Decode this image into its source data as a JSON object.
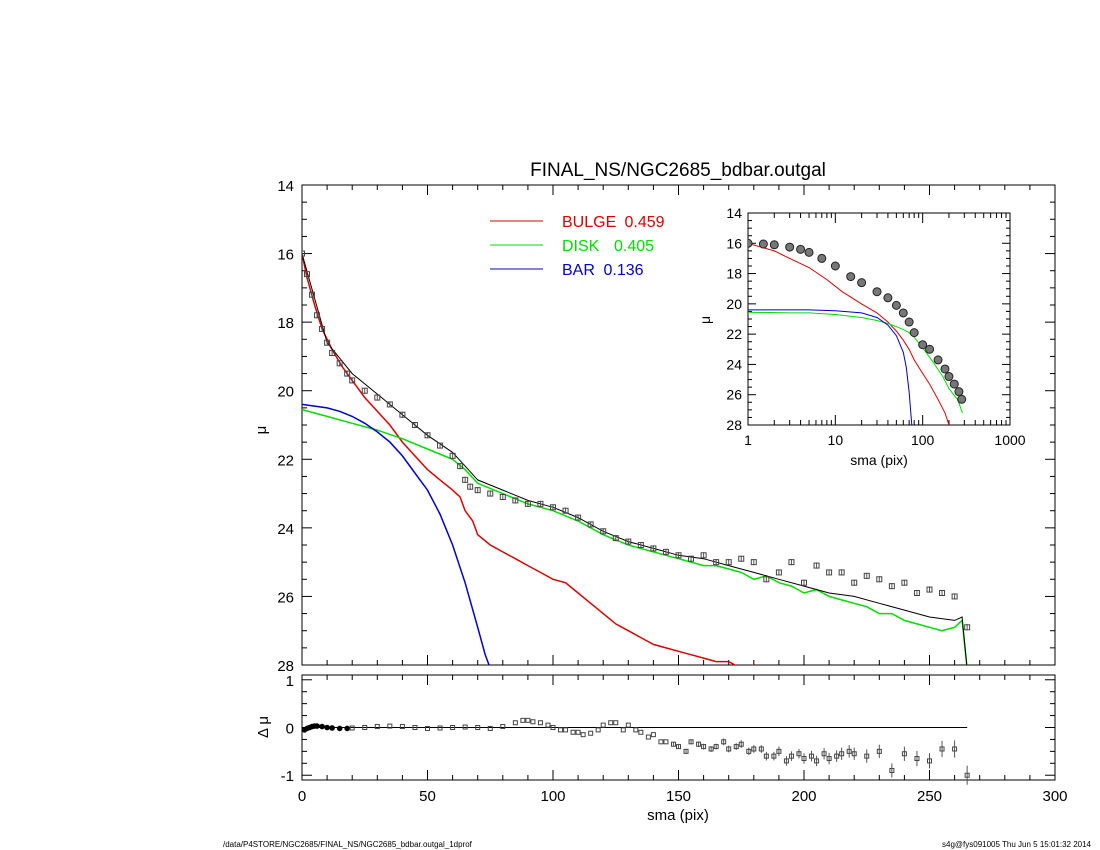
{
  "title": "FINAL_NS/NGC2685_bdbar.outgal",
  "footer": {
    "left": "/data/P4STORE/NGC2685/FINAL_NS/NGC2685_bdbar.outgal_1dprof",
    "right": "s4g@fys091005  Thu Jun  5 15:01:32 2014"
  },
  "colors": {
    "bulge": "#dd0000",
    "disk": "#00dd00",
    "bar": "#0000cc",
    "data": "#000000"
  },
  "chart_data": [
    {
      "id": "main",
      "type": "line",
      "xlabel": "sma (pix)",
      "ylabel": "μ",
      "xlim": [
        0,
        300
      ],
      "ylim": [
        28,
        14
      ],
      "xticks": [
        "0",
        "50",
        "100",
        "150",
        "200",
        "250",
        "300"
      ],
      "yticks": [
        "14",
        "16",
        "18",
        "20",
        "22",
        "24",
        "26",
        "28"
      ],
      "legend_position": "top-center",
      "legend": [
        {
          "label": "BULGE",
          "value": "0.459",
          "color": "#dd0000"
        },
        {
          "label": "DISK",
          "value": "0.405",
          "color": "#00dd00"
        },
        {
          "label": "BAR",
          "value": "0.136",
          "color": "#0000cc"
        }
      ],
      "series": [
        {
          "name": "BULGE",
          "x": [
            0,
            2,
            5,
            8,
            12,
            16,
            20,
            25,
            30,
            35,
            40,
            45,
            50,
            55,
            60,
            63,
            65,
            68,
            70,
            75,
            80,
            85,
            90,
            95,
            100,
            105,
            110,
            115,
            120,
            125,
            130,
            135,
            140,
            145,
            150,
            155,
            160,
            165,
            170,
            175,
            180
          ],
          "y": [
            16.0,
            16.7,
            17.5,
            18.2,
            18.8,
            19.3,
            19.7,
            20.2,
            20.6,
            21.0,
            21.5,
            21.9,
            22.3,
            22.6,
            22.9,
            23.1,
            23.5,
            23.8,
            24.2,
            24.5,
            24.7,
            24.9,
            25.1,
            25.3,
            25.5,
            25.6,
            25.9,
            26.2,
            26.5,
            26.8,
            27.0,
            27.2,
            27.4,
            27.5,
            27.6,
            27.7,
            27.8,
            27.9,
            27.9,
            28.1,
            28.0
          ]
        },
        {
          "name": "DISK",
          "x": [
            0,
            10,
            20,
            30,
            40,
            50,
            60,
            65,
            70,
            80,
            90,
            100,
            110,
            120,
            130,
            140,
            145,
            150,
            155,
            160,
            165,
            170,
            175,
            180,
            185,
            190,
            195,
            200,
            205,
            210,
            215,
            220,
            225,
            230,
            235,
            240,
            245,
            250,
            255,
            260,
            263,
            265
          ],
          "y": [
            20.55,
            20.75,
            20.95,
            21.15,
            21.4,
            21.7,
            22.0,
            22.3,
            22.7,
            23.0,
            23.3,
            23.5,
            23.8,
            24.2,
            24.5,
            24.7,
            24.8,
            24.9,
            25.0,
            25.1,
            25.1,
            25.2,
            25.3,
            25.5,
            25.4,
            25.6,
            25.7,
            25.9,
            25.8,
            26.0,
            26.1,
            26.2,
            26.3,
            26.5,
            26.5,
            26.7,
            26.8,
            26.9,
            27.0,
            26.9,
            26.7,
            28.1
          ]
        },
        {
          "name": "BAR",
          "x": [
            0,
            5,
            10,
            15,
            20,
            25,
            30,
            35,
            40,
            45,
            50,
            55,
            60,
            65,
            70,
            73,
            75
          ],
          "y": [
            20.4,
            20.45,
            20.5,
            20.6,
            20.75,
            20.95,
            21.2,
            21.5,
            21.9,
            22.4,
            22.9,
            23.6,
            24.5,
            25.6,
            26.9,
            27.7,
            28.1
          ]
        },
        {
          "name": "model",
          "x": [
            0,
            10,
            20,
            30,
            40,
            50,
            60,
            65,
            70,
            80,
            90,
            100,
            110,
            120,
            130,
            140,
            150,
            160,
            170,
            180,
            190,
            200,
            210,
            220,
            230,
            240,
            250,
            260,
            263,
            265
          ],
          "y": [
            16.0,
            18.6,
            19.5,
            20.1,
            20.7,
            21.3,
            21.8,
            22.2,
            22.6,
            22.9,
            23.2,
            23.4,
            23.7,
            24.1,
            24.4,
            24.6,
            24.8,
            24.9,
            25.1,
            25.3,
            25.5,
            25.7,
            25.9,
            26.0,
            26.2,
            26.4,
            26.6,
            26.7,
            26.6,
            28.1
          ]
        },
        {
          "name": "data",
          "x": [
            0,
            2,
            4,
            6,
            8,
            10,
            12,
            15,
            18,
            20,
            25,
            30,
            35,
            40,
            45,
            50,
            55,
            60,
            63,
            65,
            67,
            70,
            75,
            80,
            85,
            90,
            95,
            100,
            105,
            110,
            115,
            120,
            125,
            130,
            135,
            140,
            145,
            150,
            155,
            160,
            165,
            170,
            175,
            180,
            185,
            190,
            195,
            200,
            205,
            210,
            215,
            220,
            225,
            230,
            235,
            240,
            245,
            250,
            255,
            260,
            265
          ],
          "y": [
            16.0,
            16.6,
            17.2,
            17.8,
            18.2,
            18.6,
            18.9,
            19.2,
            19.5,
            19.7,
            20.0,
            20.2,
            20.4,
            20.7,
            21.0,
            21.3,
            21.6,
            21.9,
            22.2,
            22.6,
            22.8,
            22.9,
            23.0,
            23.1,
            23.2,
            23.3,
            23.3,
            23.4,
            23.5,
            23.7,
            23.9,
            24.1,
            24.3,
            24.4,
            24.5,
            24.6,
            24.7,
            24.8,
            24.9,
            24.8,
            25.0,
            25.0,
            24.9,
            25.0,
            25.5,
            25.3,
            25.0,
            25.6,
            25.1,
            25.3,
            25.3,
            25.6,
            25.4,
            25.5,
            25.7,
            25.6,
            25.9,
            25.8,
            25.9,
            26.0,
            26.9
          ]
        }
      ]
    },
    {
      "id": "residual",
      "type": "scatter",
      "xlabel": "sma (pix)",
      "ylabel": "Δ μ",
      "xlim": [
        0,
        300
      ],
      "ylim": [
        -1.1,
        1.1
      ],
      "xticks": [
        "0",
        "50",
        "100",
        "150",
        "200",
        "250",
        "300"
      ],
      "yticks": [
        "1",
        "0",
        "-1"
      ],
      "series": [
        {
          "name": "residual",
          "x": [
            1,
            2,
            3,
            4,
            5,
            6,
            8,
            10,
            12,
            15,
            18,
            20,
            25,
            30,
            35,
            40,
            45,
            50,
            55,
            60,
            65,
            70,
            75,
            80,
            85,
            88,
            90,
            92,
            95,
            98,
            100,
            103,
            105,
            108,
            110,
            112,
            115,
            118,
            120,
            123,
            125,
            128,
            130,
            133,
            135,
            138,
            140,
            143,
            145,
            148,
            150,
            153,
            155,
            158,
            160,
            163,
            165,
            168,
            170,
            173,
            175,
            178,
            180,
            183,
            185,
            188,
            190,
            193,
            195,
            198,
            200,
            203,
            205,
            208,
            210,
            213,
            215,
            218,
            220,
            225,
            230,
            235,
            240,
            245,
            250,
            255,
            260,
            265
          ],
          "y": [
            -0.05,
            -0.02,
            0.0,
            0.02,
            0.03,
            0.03,
            0.02,
            0.0,
            -0.01,
            -0.02,
            -0.02,
            -0.01,
            0.0,
            0.02,
            0.03,
            0.02,
            0.0,
            -0.02,
            -0.01,
            0.0,
            0.01,
            0.0,
            -0.02,
            0.02,
            0.1,
            0.15,
            0.15,
            0.12,
            0.1,
            0.05,
            0.0,
            -0.05,
            -0.05,
            -0.1,
            -0.1,
            -0.15,
            -0.12,
            -0.05,
            0.05,
            0.1,
            0.1,
            -0.05,
            0.05,
            -0.05,
            -0.1,
            -0.2,
            -0.15,
            -0.3,
            -0.3,
            -0.35,
            -0.4,
            -0.5,
            -0.3,
            -0.35,
            -0.4,
            -0.45,
            -0.4,
            -0.3,
            -0.45,
            -0.4,
            -0.35,
            -0.5,
            -0.45,
            -0.45,
            -0.6,
            -0.6,
            -0.5,
            -0.7,
            -0.6,
            -0.55,
            -0.65,
            -0.6,
            -0.7,
            -0.55,
            -0.65,
            -0.6,
            -0.55,
            -0.5,
            -0.55,
            -0.6,
            -0.5,
            -0.9,
            -0.55,
            -0.65,
            -0.7,
            -0.45,
            -0.45,
            -1.0
          ],
          "yerr": [
            0.01,
            0.01,
            0.01,
            0.01,
            0.01,
            0.01,
            0.01,
            0.01,
            0.01,
            0.01,
            0.01,
            0.01,
            0.01,
            0.01,
            0.01,
            0.01,
            0.01,
            0.01,
            0.01,
            0.01,
            0.01,
            0.01,
            0.01,
            0.01,
            0.02,
            0.02,
            0.02,
            0.02,
            0.02,
            0.02,
            0.02,
            0.02,
            0.02,
            0.02,
            0.02,
            0.02,
            0.02,
            0.02,
            0.03,
            0.03,
            0.03,
            0.03,
            0.03,
            0.03,
            0.03,
            0.04,
            0.04,
            0.04,
            0.04,
            0.05,
            0.05,
            0.05,
            0.05,
            0.06,
            0.06,
            0.06,
            0.06,
            0.07,
            0.07,
            0.07,
            0.08,
            0.08,
            0.08,
            0.08,
            0.09,
            0.09,
            0.1,
            0.1,
            0.1,
            0.1,
            0.11,
            0.11,
            0.11,
            0.12,
            0.12,
            0.12,
            0.13,
            0.13,
            0.13,
            0.14,
            0.14,
            0.15,
            0.15,
            0.16,
            0.16,
            0.17,
            0.18,
            0.2
          ]
        }
      ]
    },
    {
      "id": "inset",
      "type": "line",
      "xlabel": "sma (pix)",
      "ylabel": "μ",
      "xscale": "log",
      "xlim": [
        1,
        1000
      ],
      "ylim": [
        28,
        14
      ],
      "xticks": [
        "1",
        "10",
        "100",
        "1000"
      ],
      "yticks": [
        "14",
        "16",
        "18",
        "20",
        "22",
        "24",
        "26",
        "28"
      ],
      "series": [
        {
          "name": "BULGE",
          "x": [
            1,
            2,
            3,
            5,
            8,
            12,
            20,
            30,
            40,
            50,
            60,
            70,
            80,
            100,
            120,
            150,
            180,
            200
          ],
          "y": [
            16.0,
            16.5,
            17.0,
            17.6,
            18.4,
            19.2,
            20.0,
            20.6,
            21.2,
            21.8,
            22.4,
            23.0,
            23.7,
            24.6,
            25.3,
            26.3,
            27.2,
            28.0
          ]
        },
        {
          "name": "DISK",
          "x": [
            1,
            3,
            5,
            10,
            20,
            30,
            40,
            50,
            60,
            70,
            80,
            100,
            130,
            170,
            200,
            250,
            270,
            285
          ],
          "y": [
            20.55,
            20.6,
            20.6,
            20.7,
            20.9,
            21.1,
            21.3,
            21.5,
            21.7,
            21.9,
            22.2,
            22.9,
            23.8,
            24.8,
            25.6,
            26.3,
            26.8,
            27.2
          ]
        },
        {
          "name": "BAR",
          "x": [
            1,
            3,
            5,
            10,
            20,
            30,
            40,
            50,
            60,
            65,
            70,
            75
          ],
          "y": [
            20.4,
            20.4,
            20.4,
            20.45,
            20.6,
            20.9,
            21.4,
            22.1,
            23.2,
            24.2,
            25.8,
            28.0
          ]
        },
        {
          "name": "data",
          "x": [
            1,
            1.5,
            2,
            3,
            4,
            5,
            7,
            10,
            15,
            20,
            30,
            40,
            50,
            60,
            70,
            80,
            100,
            120,
            150,
            180,
            200,
            230,
            260,
            280
          ],
          "y": [
            16.0,
            16.05,
            16.1,
            16.25,
            16.4,
            16.6,
            17.0,
            17.5,
            18.2,
            18.6,
            19.2,
            19.6,
            20.1,
            20.6,
            21.2,
            21.9,
            22.7,
            23.0,
            23.7,
            24.3,
            24.8,
            25.3,
            25.8,
            26.3
          ]
        }
      ]
    }
  ]
}
